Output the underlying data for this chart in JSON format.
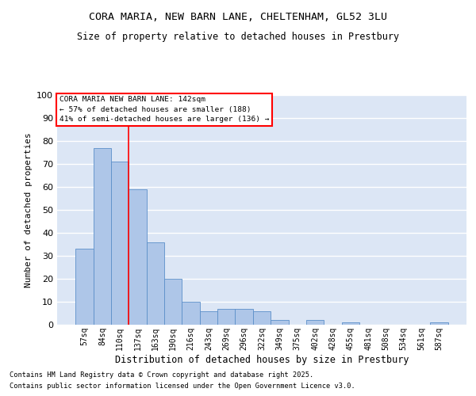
{
  "title1": "CORA MARIA, NEW BARN LANE, CHELTENHAM, GL52 3LU",
  "title2": "Size of property relative to detached houses in Prestbury",
  "xlabel": "Distribution of detached houses by size in Prestbury",
  "ylabel": "Number of detached properties",
  "categories": [
    "57sq",
    "84sq",
    "110sq",
    "137sq",
    "163sq",
    "190sq",
    "216sq",
    "243sq",
    "269sq",
    "296sq",
    "322sq",
    "349sq",
    "375sq",
    "402sq",
    "428sq",
    "455sq",
    "481sq",
    "508sq",
    "534sq",
    "561sq",
    "587sq"
  ],
  "values": [
    33,
    77,
    71,
    59,
    36,
    20,
    10,
    6,
    7,
    7,
    6,
    2,
    0,
    2,
    0,
    1,
    0,
    0,
    0,
    0,
    1
  ],
  "bar_color": "#aec6e8",
  "bar_edge_color": "#5b8fc9",
  "vline_color": "red",
  "vline_pos": 2.5,
  "annotation_line1": "CORA MARIA NEW BARN LANE: 142sqm",
  "annotation_line2": "← 57% of detached houses are smaller (188)",
  "annotation_line3": "41% of semi-detached houses are larger (136) →",
  "annotation_box_color": "white",
  "annotation_box_edge": "red",
  "background_color": "#dce6f5",
  "grid_color": "white",
  "footer1": "Contains HM Land Registry data © Crown copyright and database right 2025.",
  "footer2": "Contains public sector information licensed under the Open Government Licence v3.0.",
  "ylim": [
    0,
    100
  ],
  "yticks": [
    0,
    10,
    20,
    30,
    40,
    50,
    60,
    70,
    80,
    90,
    100
  ]
}
